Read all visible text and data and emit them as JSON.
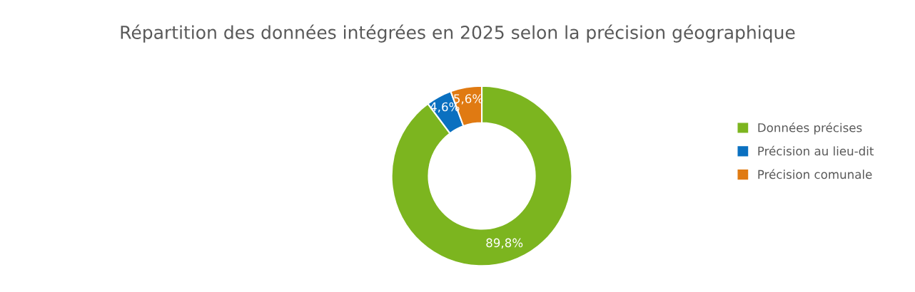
{
  "chart_data": {
    "type": "donut",
    "title": "Répartition des données intégrées en 2025 selon la précision géographique",
    "categories": [
      "Données précises",
      "Précision au lieu-dit",
      "Précision comunale"
    ],
    "values": [
      89.8,
      4.6,
      5.6
    ],
    "colors": [
      "#7cb51f",
      "#0a70c0",
      "#e07a12"
    ],
    "value_labels": [
      "89,8%",
      "4,6%",
      "5,6%"
    ],
    "legend": "right"
  }
}
